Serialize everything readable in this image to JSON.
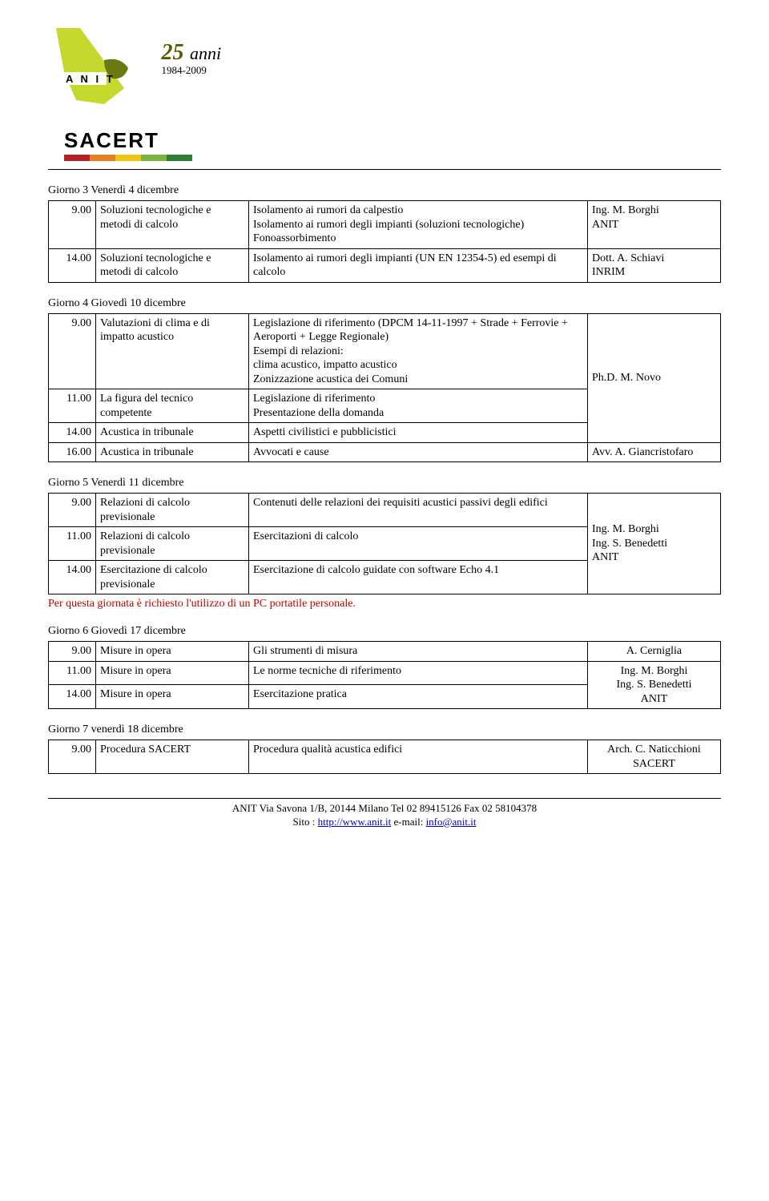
{
  "logo": {
    "anit_color": "#c4d82e",
    "anit_text": "A N I T",
    "anni_num": "25",
    "anni_word": "anni",
    "anni_years": "1984-2009",
    "sacert_text": "SACERT",
    "sacert_bar_colors": [
      "#b22222",
      "#e67e22",
      "#f1c40f",
      "#7cb342",
      "#2e7d32"
    ]
  },
  "day3": {
    "title": "Giorno 3 Venerdì 4 dicembre",
    "rows": [
      {
        "t": "9.00",
        "c2": "Soluzioni tecnologiche e metodi di calcolo",
        "c3": "Isolamento ai rumori da calpestio\nIsolamento ai rumori degli impianti (soluzioni tecnologiche)\nFonoassorbimento",
        "c4": "Ing. M. Borghi\nANIT"
      },
      {
        "t": "14.00",
        "c2": "Soluzioni tecnologiche e metodi di calcolo",
        "c3": "Isolamento ai rumori degli impianti (UN EN 12354-5) ed esempi di calcolo",
        "c4": "Dott. A. Schiavi\nINRIM"
      }
    ]
  },
  "day4": {
    "title": "Giorno 4 Giovedì 10 dicembre",
    "rows": [
      {
        "t": "9.00",
        "c2": "Valutazioni di clima e di impatto acustico",
        "c3": "Legislazione di riferimento (DPCM 14-11-1997 + Strade + Ferrovie + Aeroporti + Legge Regionale)\nEsempi di relazioni:\nclima acustico, impatto acustico\nZonizzazione acustica dei Comuni",
        "c4": "Ph.D. M. Novo",
        "rowspan4": 3
      },
      {
        "t": "11.00",
        "c2": "La figura del tecnico competente",
        "c3": "Legislazione di riferimento\nPresentazione della domanda"
      },
      {
        "t": "14.00",
        "c2": "Acustica in tribunale",
        "c3": "Aspetti civilistici e pubblicistici"
      },
      {
        "t": "16.00",
        "c2": "Acustica in tribunale",
        "c3": "Avvocati e cause",
        "c4": "Avv. A. Giancristofaro"
      }
    ]
  },
  "day5": {
    "title": "Giorno 5 Venerdì 11 dicembre",
    "rows": [
      {
        "t": "9.00",
        "c2": "Relazioni di calcolo previsionale",
        "c3": "Contenuti delle relazioni dei requisiti acustici passivi degli edifici",
        "c4": "Ing. M. Borghi\nIng. S. Benedetti\nANIT",
        "rowspan4": 3
      },
      {
        "t": "11.00",
        "c2": "Relazioni di calcolo previsionale",
        "c3": "Esercitazioni di calcolo"
      },
      {
        "t": "14.00",
        "c2": "Esercitazione di calcolo previsionale",
        "c3": "Esercitazione di calcolo guidate con software Echo 4.1"
      }
    ],
    "note": "Per questa giornata è richiesto l'utilizzo di un PC portatile personale."
  },
  "day6": {
    "title": "Giorno 6 Giovedì 17 dicembre",
    "rows": [
      {
        "t": "9.00",
        "c2": "Misure in opera",
        "c3": "Gli strumenti di misura",
        "c4": "A. Cerniglia"
      },
      {
        "t": "11.00",
        "c2": "Misure in opera",
        "c3": "Le norme tecniche di riferimento",
        "c4": "Ing. M. Borghi\nIng. S. Benedetti\nANIT",
        "rowspan4": 2
      },
      {
        "t": "14.00",
        "c2": "Misure in opera",
        "c3": "Esercitazione pratica"
      }
    ]
  },
  "day7": {
    "title": "Giorno 7 venerdì 18 dicembre",
    "rows": [
      {
        "t": "9.00",
        "c2": "Procedura SACERT",
        "c3": "Procedura qualità acustica edifici",
        "c4": "Arch. C. Naticchioni\nSACERT"
      }
    ]
  },
  "footer": {
    "line1_pre": "ANIT Via Savona 1/B, 20144 Milano   Tel 02 89415126 Fax 02 58104378",
    "line2_pre": "Sito : ",
    "site": "http://www.anit.it",
    "line2_mid": "  e-mail: ",
    "email": "info@anit.it"
  }
}
